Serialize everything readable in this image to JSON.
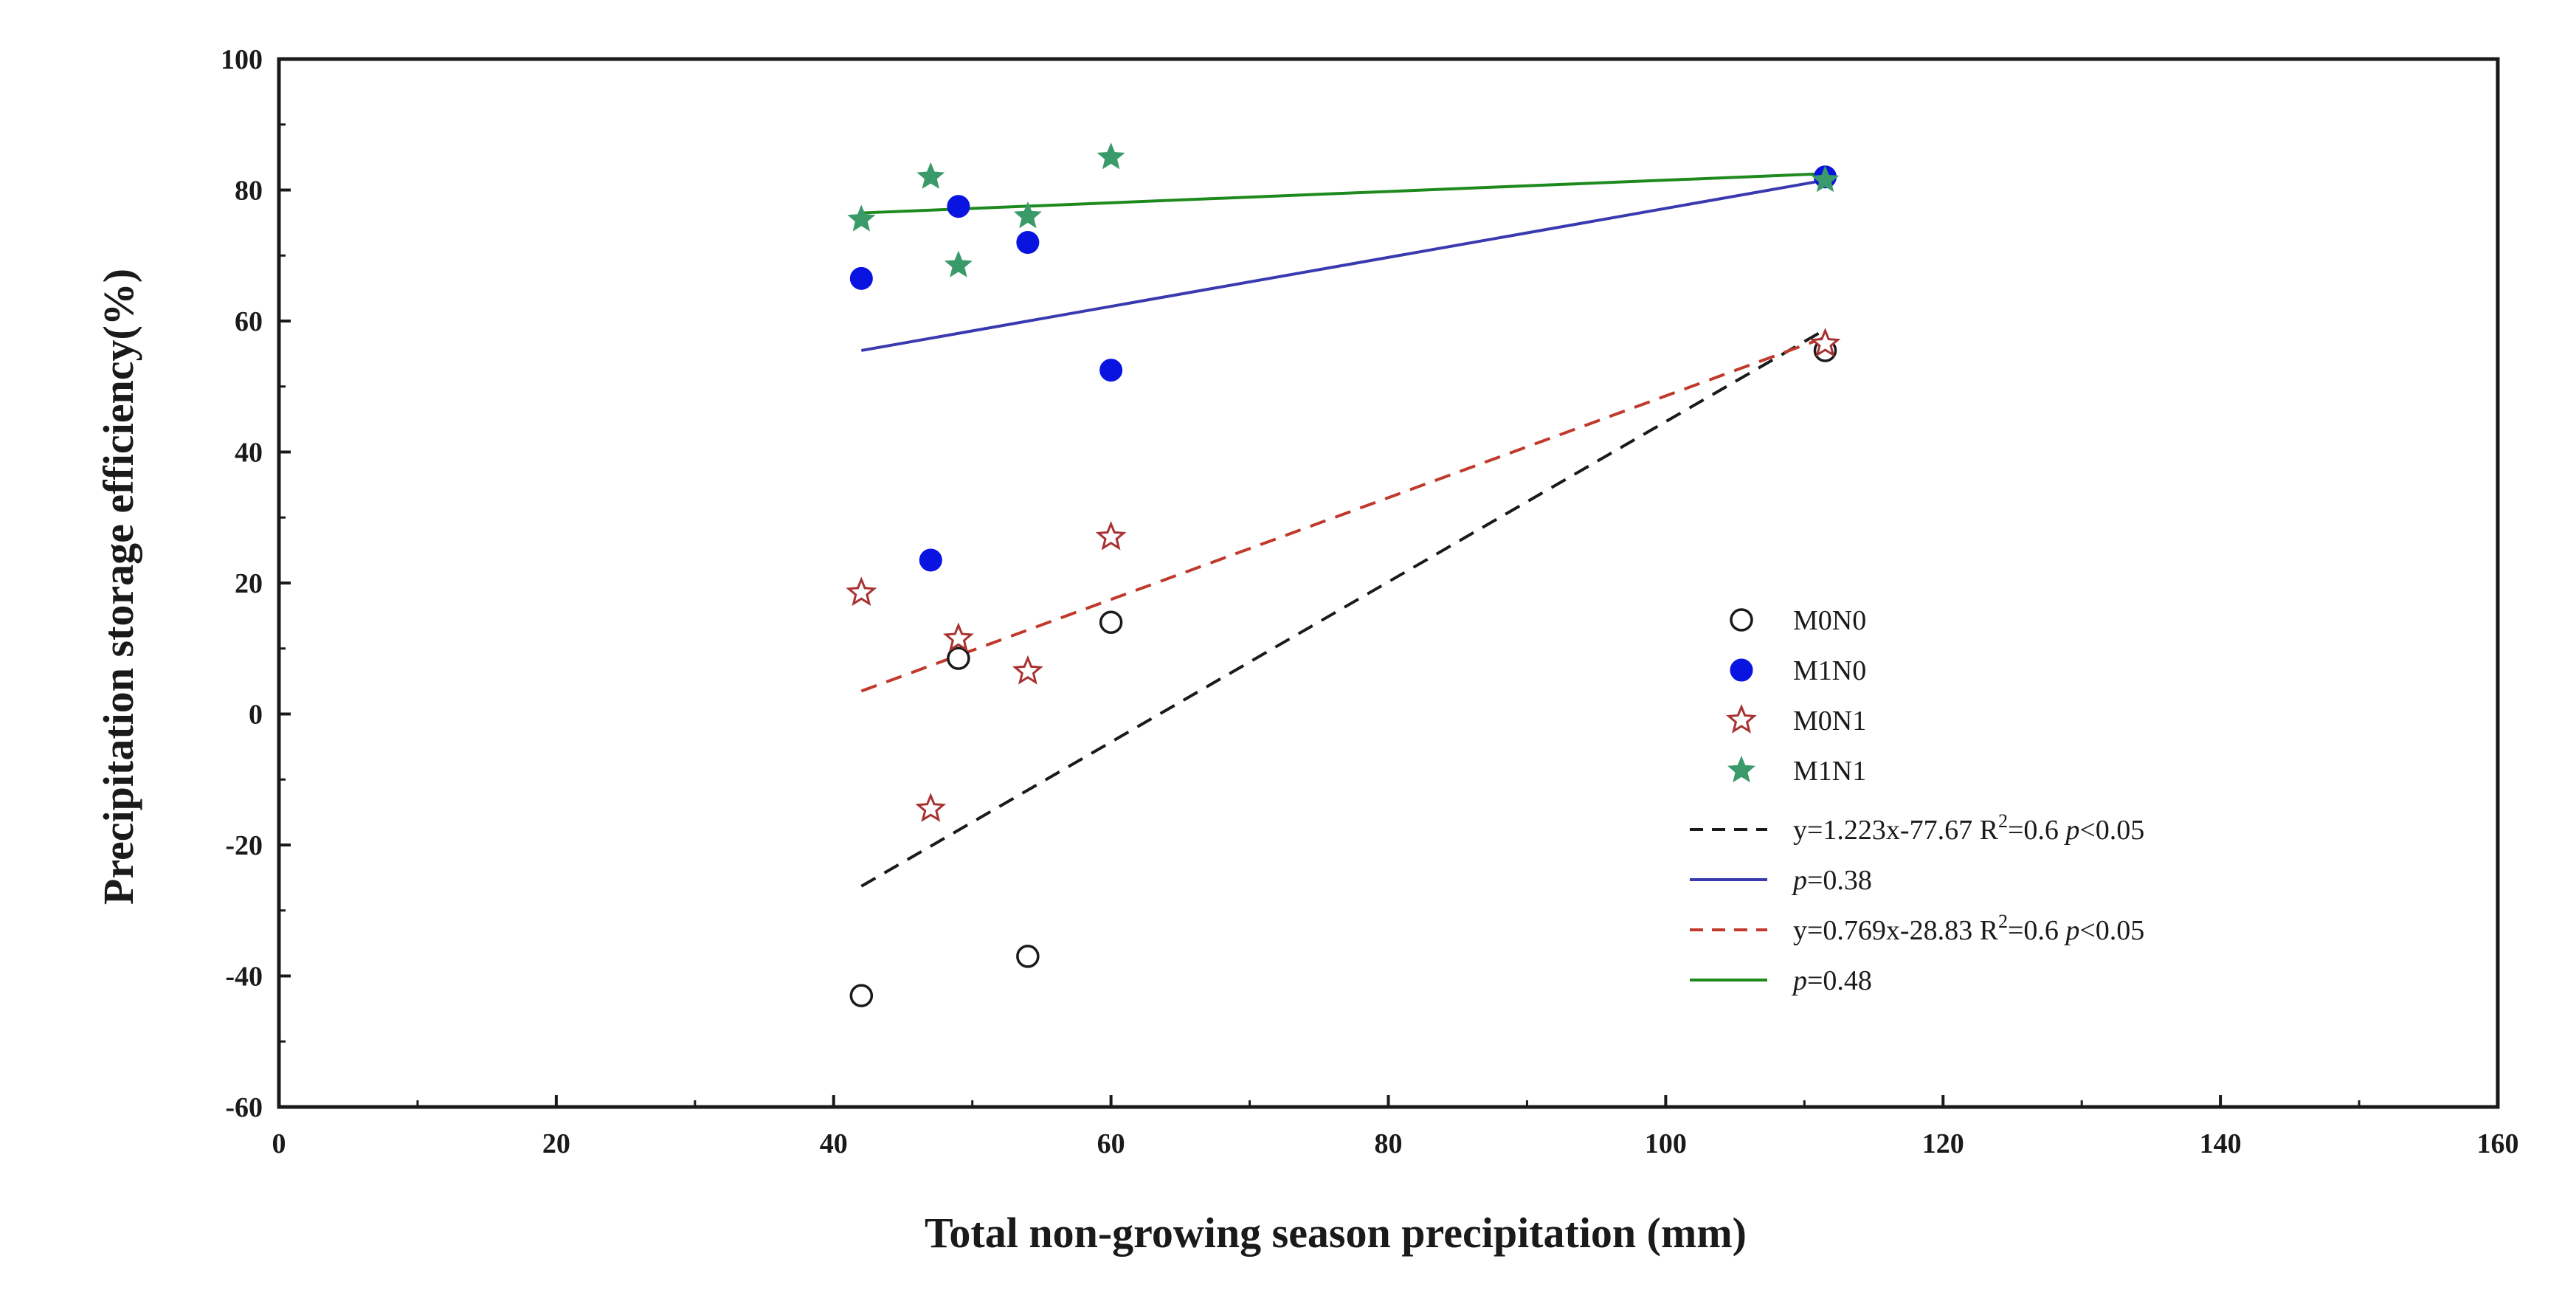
{
  "chart_data": {
    "type": "scatter",
    "title": "",
    "xlabel": "Total non-growing season precipitation (mm)",
    "ylabel": "Precipitation storage efficiency(%)",
    "xlim": [
      0,
      160
    ],
    "ylim": [
      -60,
      100
    ],
    "x_ticks": [
      0,
      20,
      40,
      60,
      80,
      100,
      120,
      140,
      160
    ],
    "y_ticks": [
      -60,
      -40,
      -20,
      0,
      20,
      40,
      60,
      80,
      100
    ],
    "grid": false,
    "legend_position": "right-middle",
    "series": [
      {
        "name": "M0N0",
        "marker": "open-circle",
        "color": "#1a1a1a",
        "x": [
          42,
          49,
          54,
          60,
          111.5
        ],
        "y": [
          -43,
          8.5,
          -37,
          14,
          55.5
        ]
      },
      {
        "name": "M1N0",
        "marker": "filled-circle",
        "color": "#0a14e0",
        "x": [
          42,
          47,
          49,
          54,
          60,
          111.5
        ],
        "y": [
          66.5,
          23.5,
          77.5,
          72,
          52.5,
          82
        ]
      },
      {
        "name": "M0N1",
        "marker": "open-star",
        "color": "#a83232",
        "x": [
          42,
          47,
          49,
          54,
          60,
          111.5
        ],
        "y": [
          18.5,
          -14.5,
          11.5,
          6.5,
          27,
          56.5
        ]
      },
      {
        "name": "M1N1",
        "marker": "filled-star",
        "color": "#3a9a6a",
        "x": [
          42,
          47,
          49,
          54,
          60,
          111.5
        ],
        "y": [
          75.5,
          82,
          68.5,
          76,
          85,
          81.5
        ]
      }
    ],
    "fits": [
      {
        "name": "y=1.223x-77.67 R²=0.6 p<0.05",
        "label_pre": "y=1.223x-77.67 R",
        "label_sup": "2",
        "label_mid": "=0.6 ",
        "label_p": "p",
        "label_post": "<0.05",
        "style": "dashed",
        "color": "#1a1a1a",
        "x": [
          42,
          111.5
        ],
        "y": [
          -26.3,
          58.7
        ]
      },
      {
        "name": "p=0.38",
        "label_p": "p",
        "label_post": "=0.38",
        "style": "solid",
        "color": "#3a3ab0",
        "x": [
          42,
          111.5
        ],
        "y": [
          55.5,
          81.5
        ]
      },
      {
        "name": "y=0.769x-28.83 R²=0.6 p<0.05",
        "label_pre": "y=0.769x-28.83 R",
        "label_sup": "2",
        "label_mid": "=0.6 ",
        "label_p": "p",
        "label_post": "<0.05",
        "style": "dashed",
        "color": "#c0392b",
        "x": [
          42,
          111.5
        ],
        "y": [
          3.5,
          57.5
        ]
      },
      {
        "name": "p=0.48",
        "label_p": "p",
        "label_post": "=0.48",
        "style": "solid",
        "color": "#1e8a1e",
        "x": [
          42,
          111.5
        ],
        "y": [
          76.5,
          82.5
        ]
      }
    ]
  }
}
